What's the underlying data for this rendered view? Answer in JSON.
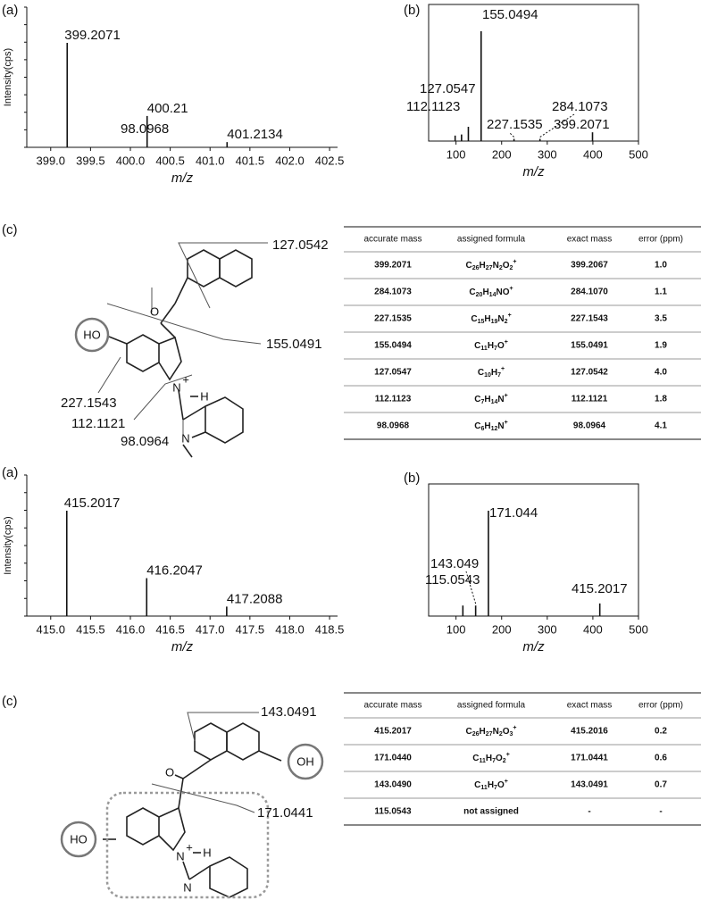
{
  "panel_labels": [
    "(a)",
    "(b)",
    "(c)",
    "(a)",
    "(b)",
    "(c)"
  ],
  "chart_data": [
    {
      "type": "spectrum",
      "x_label": "m/z",
      "y_label": "Intensity(cps)",
      "color": "#111",
      "x": [
        399.2071,
        400.21,
        401.2134
      ],
      "values": [
        100,
        30,
        5
      ],
      "xlim": [
        398.7,
        402.6
      ],
      "ylim": [
        0,
        100
      ],
      "xticks": [
        {
          "value": 399,
          "label": "399.0"
        },
        399.5,
        {
          "value": 400,
          "label": "400.0"
        },
        400.5,
        {
          "value": 401,
          "label": "401.0"
        },
        401.5,
        {
          "value": 402,
          "label": "402.0"
        },
        402.5
      ]
    },
    {
      "type": "spectrum",
      "x_label": "m/z",
      "color": "#111",
      "frame": true,
      "x": [
        98.0968,
        112.1123,
        127.0547,
        155.0494,
        227.1535,
        284.1073,
        399.2071
      ],
      "values": [
        5,
        6,
        13,
        100,
        2,
        2,
        8
      ],
      "xlim": [
        40,
        500
      ],
      "ylim": [
        0,
        100
      ],
      "xticks": [
        100,
        200,
        300,
        400,
        500
      ]
    },
    {
      "type": "spectrum",
      "x_label": "m/z",
      "y_label": "Intensity(cps)",
      "color": "#111",
      "x": [
        415.2017,
        416.2047,
        417.2088
      ],
      "values": [
        100,
        36,
        9
      ],
      "xlim": [
        414.7,
        418.6
      ],
      "ylim": [
        0,
        100
      ],
      "xticks": [
        {
          "value": 415,
          "label": "415.0"
        },
        415.5,
        {
          "value": 416,
          "label": "416.0"
        },
        416.5,
        {
          "value": 417,
          "label": "417.0"
        },
        417.5,
        {
          "value": 418,
          "label": "418.0"
        },
        418.5
      ]
    },
    {
      "type": "spectrum",
      "x_label": "m/z",
      "color": "#111",
      "frame": true,
      "x": [
        115.0543,
        143.049,
        171.044,
        415.2017
      ],
      "values": [
        10,
        10,
        100,
        12
      ],
      "xlim": [
        40,
        500
      ],
      "ylim": [
        0,
        100
      ],
      "xticks": [
        100,
        200,
        300,
        400,
        500
      ]
    }
  ],
  "tables": [
    {
      "columns": [
        "accurate mass",
        "assigned formula",
        "exact mass",
        "error (ppm)"
      ],
      "rows": [
        [
          "399.2071",
          "C26H27N2O2+",
          "399.2067",
          "1.0"
        ],
        [
          "284.1073",
          "C20H14NO+",
          "284.1070",
          "1.1"
        ],
        [
          "227.1535",
          "C15H19N2+",
          "227.1543",
          "3.5"
        ],
        [
          "155.0494",
          "C11H7O+",
          "155.0491",
          "1.9"
        ],
        [
          "127.0547",
          "C10H7+",
          "127.0542",
          "4.0"
        ],
        [
          "112.1123",
          "C7H14N+",
          "112.1121",
          "1.8"
        ],
        [
          "98.0968",
          "C6H12N+",
          "98.0964",
          "4.1"
        ]
      ]
    },
    {
      "columns": [
        "accurate mass",
        "assigned formula",
        "exact mass",
        "error (ppm)"
      ],
      "rows": [
        [
          "415.2017",
          "C26H27N2O3+",
          "415.2016",
          "0.2"
        ],
        [
          "171.0440",
          "C11H7O2+",
          "171.0441",
          "0.6"
        ],
        [
          "143.0490",
          "C11H7O+",
          "143.0491",
          "0.7"
        ],
        [
          "115.0543",
          "not assigned",
          "-",
          "-"
        ]
      ]
    }
  ],
  "structures": [
    {
      "fragments": [
        "127.0542",
        "155.0491",
        "227.1543",
        "112.1121",
        "98.0964"
      ],
      "atoms": [
        "HO",
        "O",
        "N",
        "+",
        "H",
        "N"
      ]
    },
    {
      "fragments": [
        "143.0491",
        "171.0441"
      ],
      "atoms": [
        "OH",
        "O",
        "N",
        "+",
        "H",
        "HO",
        "N"
      ]
    }
  ]
}
